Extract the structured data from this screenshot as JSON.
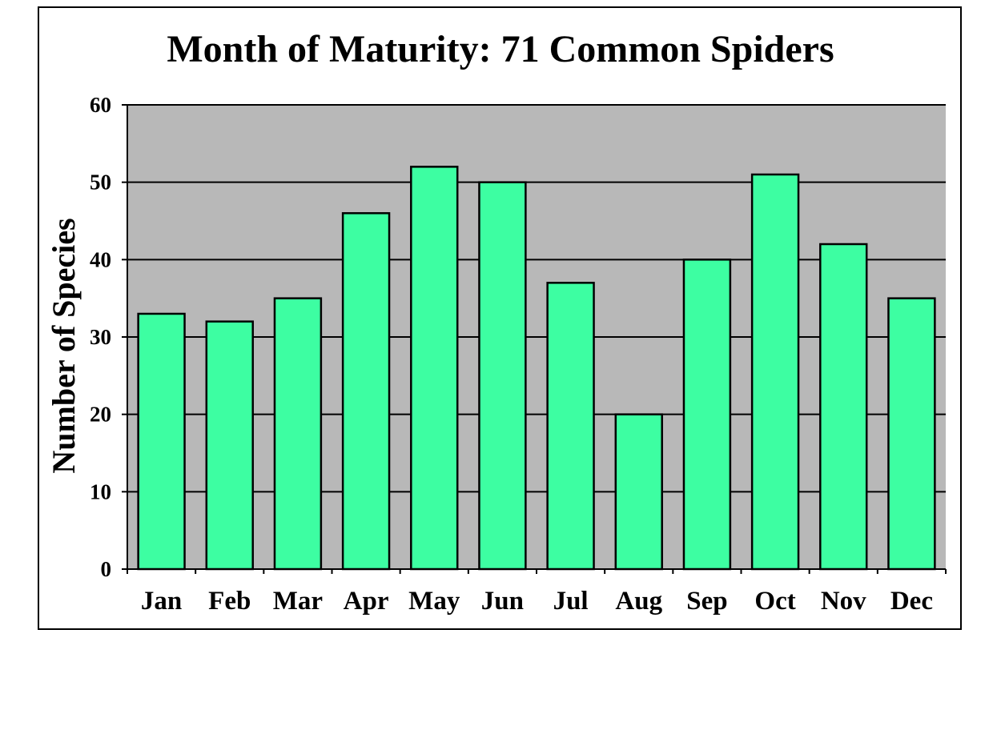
{
  "chart_data": {
    "type": "bar",
    "title": "Month of Maturity: 71 Common Spiders",
    "xlabel": "",
    "ylabel": "Number of Species",
    "categories": [
      "Jan",
      "Feb",
      "Mar",
      "Apr",
      "May",
      "Jun",
      "Jul",
      "Aug",
      "Sep",
      "Oct",
      "Nov",
      "Dec"
    ],
    "values": [
      33,
      32,
      35,
      46,
      52,
      50,
      37,
      20,
      40,
      51,
      42,
      35
    ],
    "ylim": [
      0,
      60
    ],
    "yticks": [
      0,
      10,
      20,
      30,
      40,
      50,
      60
    ],
    "grid": true,
    "legend": "none",
    "colors": {
      "bar_fill": "#3dfea2",
      "bar_stroke": "#000000",
      "plot_background": "#b8b8b8",
      "gridline": "#000000",
      "frame": "#000000"
    }
  }
}
